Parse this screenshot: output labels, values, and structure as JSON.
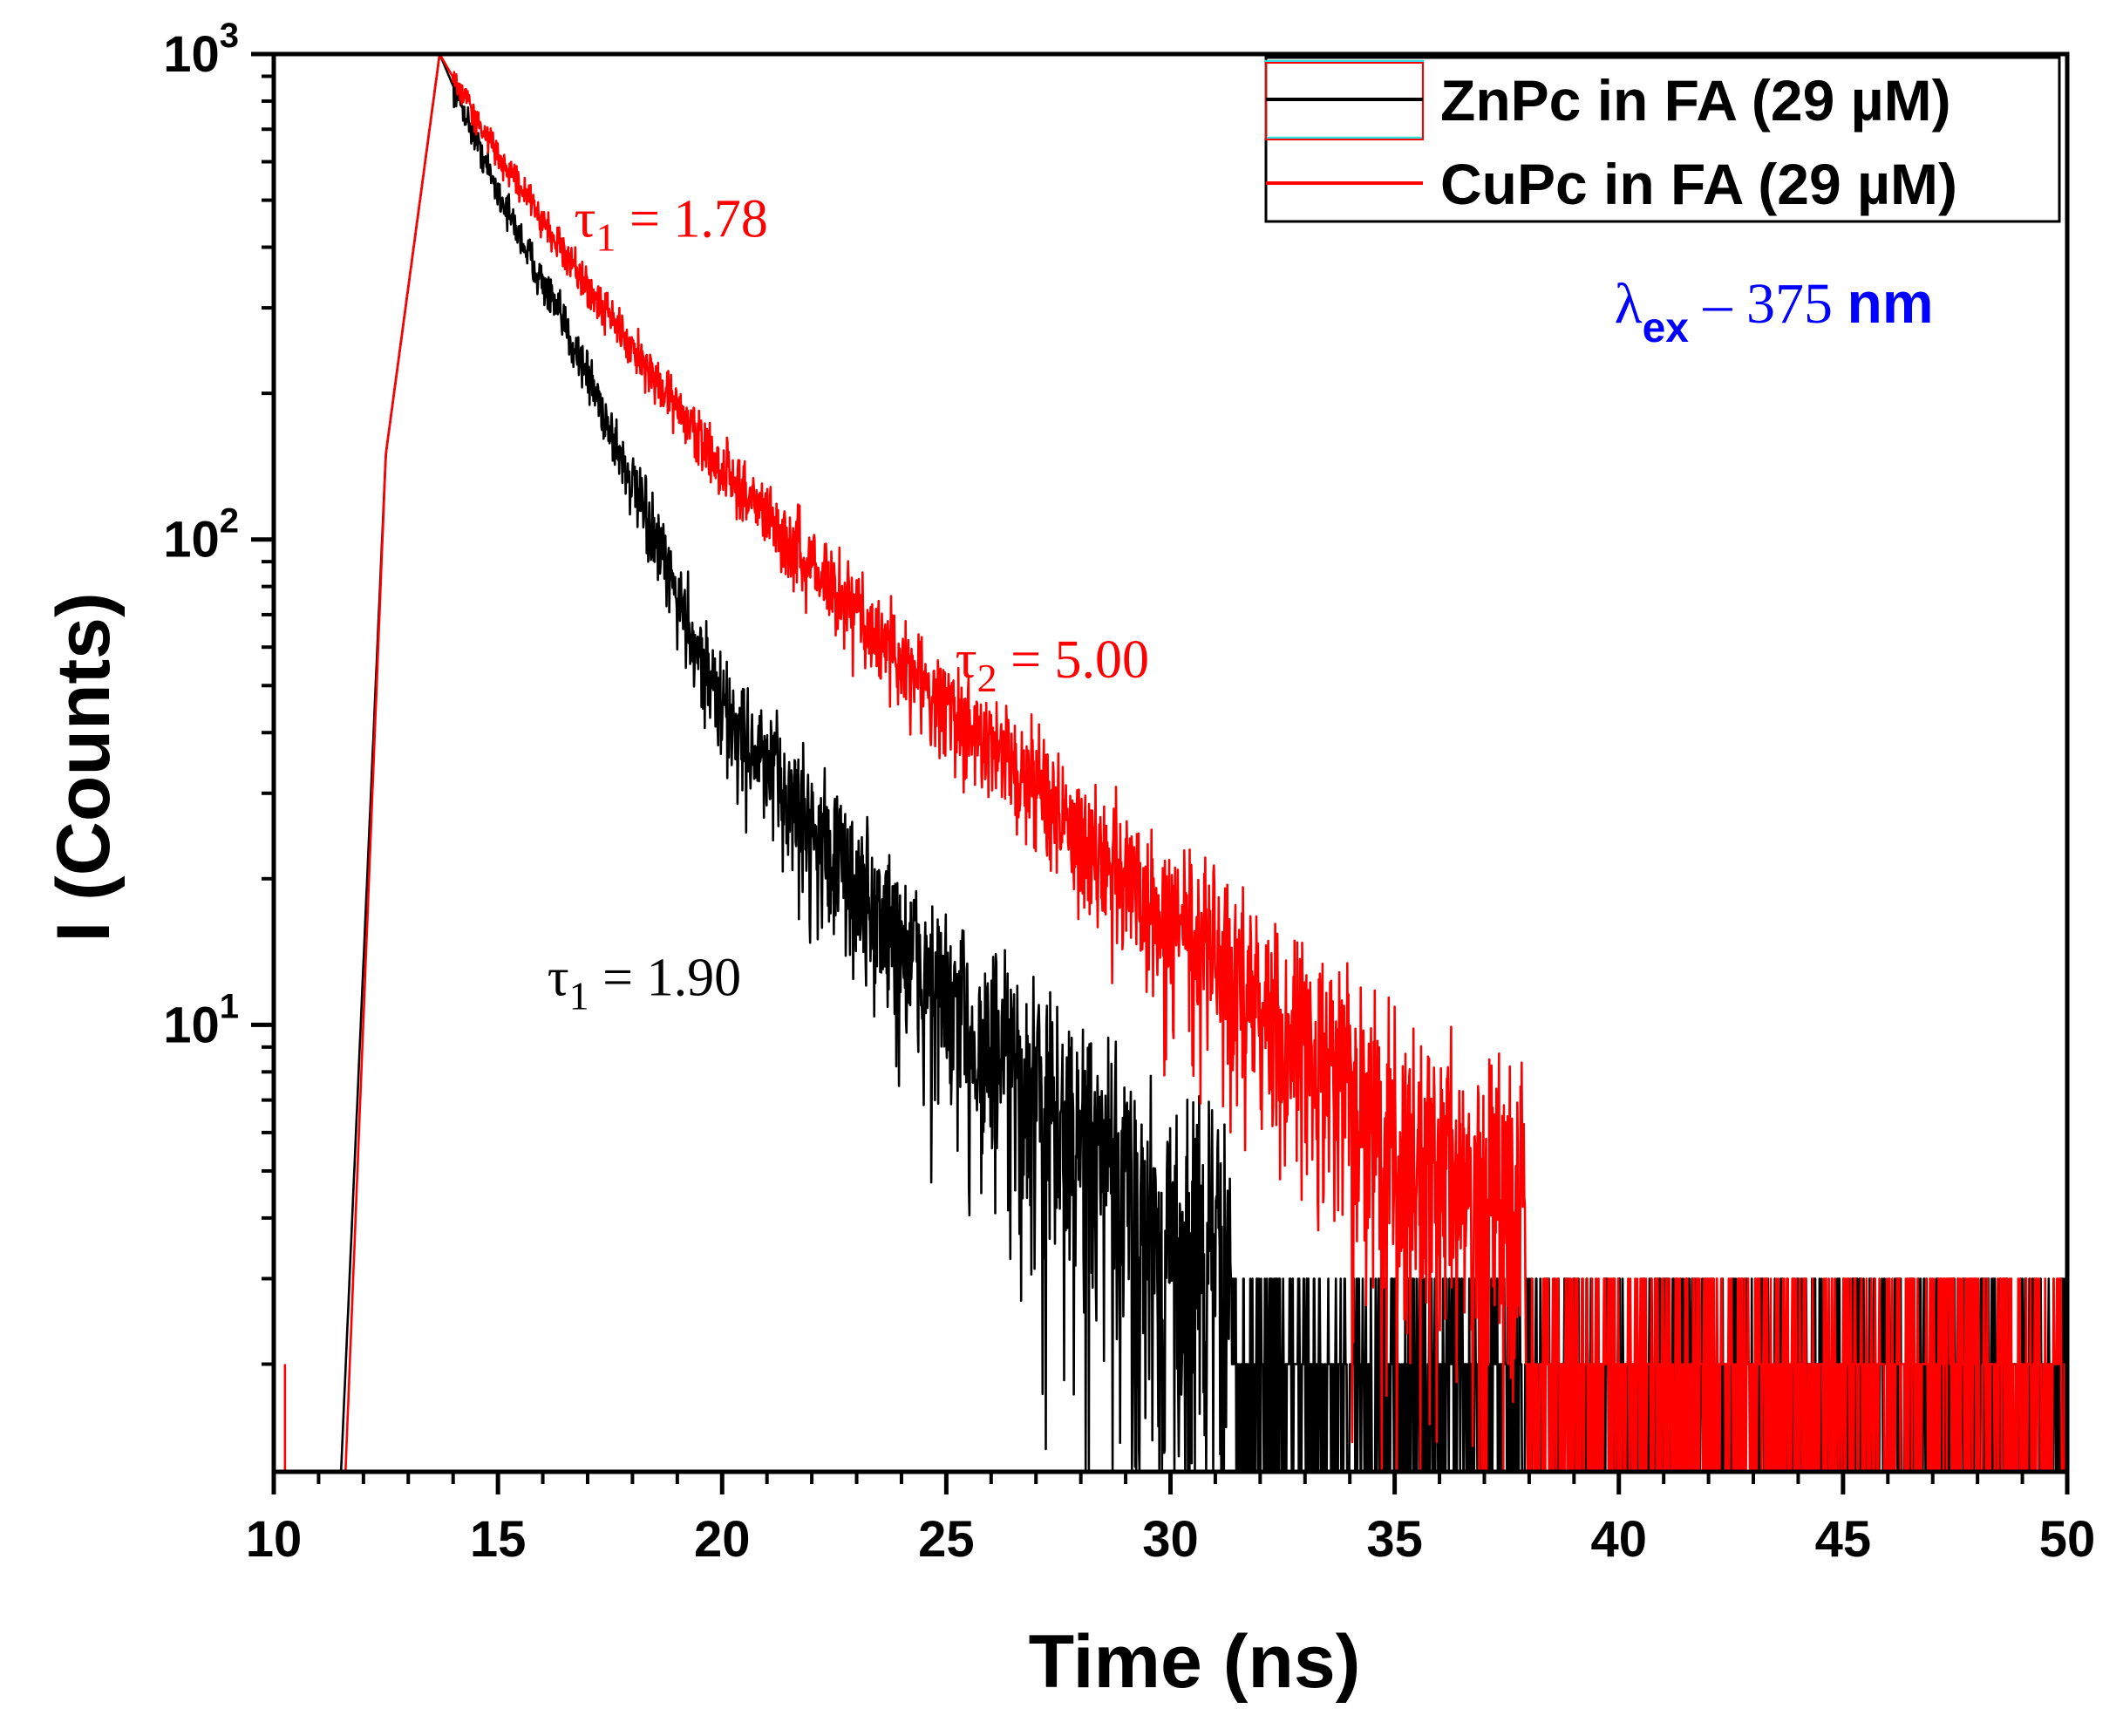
{
  "chart_data": {
    "type": "line",
    "title": "",
    "xlabel": "Time (ns)",
    "ylabel": "I (Counts)",
    "xlim": [
      10,
      50
    ],
    "ylim": [
      1.2,
      1000
    ],
    "yscale": "log",
    "x_ticks": [
      10,
      15,
      20,
      25,
      30,
      35,
      40,
      45,
      50
    ],
    "x_tick_labels": [
      "10",
      "15",
      "20",
      "25",
      "30",
      "35",
      "40",
      "45",
      "50"
    ],
    "x_minor_tick_step": 1,
    "y_ticks": [
      {
        "base": "10",
        "exp": "1",
        "value": 10
      },
      {
        "base": "10",
        "exp": "2",
        "value": 100
      },
      {
        "base": "10",
        "exp": "3",
        "value": 1000
      }
    ],
    "legend_position": "top-right",
    "series": [
      {
        "name": "ZnPc in FA (29 µM)",
        "color": "#000000",
        "peak_time": 13.7,
        "peak_value": 1000,
        "rise_start": 11.5,
        "lifetimes_ns": [
          1.9
        ],
        "key_points": [
          {
            "x": 11.5,
            "y": 1.2
          },
          {
            "x": 12.5,
            "y": 150
          },
          {
            "x": 13.7,
            "y": 1000
          },
          {
            "x": 15,
            "y": 520
          },
          {
            "x": 17,
            "y": 220
          },
          {
            "x": 20,
            "y": 45
          },
          {
            "x": 25,
            "y": 11
          },
          {
            "x": 30,
            "y": 3.5
          },
          {
            "x": 40,
            "y": 1.8
          },
          {
            "x": 50,
            "y": 1.5
          }
        ],
        "noise_floor": 2
      },
      {
        "name": "CuPc in FA (29 µM)",
        "color": "#ff0000",
        "peak_time": 13.7,
        "peak_value": 1000,
        "rise_start": 11.6,
        "lifetimes_ns": [
          1.78,
          5.0
        ],
        "key_points": [
          {
            "x": 11.6,
            "y": 1.2
          },
          {
            "x": 12.5,
            "y": 150
          },
          {
            "x": 13.7,
            "y": 1000
          },
          {
            "x": 15,
            "y": 620
          },
          {
            "x": 17,
            "y": 330
          },
          {
            "x": 20,
            "y": 140
          },
          {
            "x": 25,
            "y": 45
          },
          {
            "x": 30,
            "y": 17
          },
          {
            "x": 35,
            "y": 6
          },
          {
            "x": 40,
            "y": 3
          },
          {
            "x": 50,
            "y": 2
          }
        ],
        "noise_floor": 2.5
      }
    ],
    "annotations": [
      {
        "name": "cupc-tau1",
        "text_tau": "τ",
        "sub": "1",
        "text_rest": " = 1.78",
        "color": "#ff0000",
        "x": 16.7,
        "y": 420
      },
      {
        "name": "cupc-tau2",
        "text_tau": "τ",
        "sub": "2",
        "text_rest": " = 5.00",
        "color": "#ff0000",
        "x": 25.2,
        "y": 52
      },
      {
        "name": "znpc-tau1",
        "text_tau": "τ",
        "sub": "1",
        "text_rest": " = 1.90",
        "color": "#000000",
        "x": 16.1,
        "y": 11.5
      }
    ],
    "excitation": {
      "lambda": "λ",
      "sub": "ex",
      "middle": " – 375 ",
      "unit": "nm",
      "color": "#0000ff",
      "x": 39.9,
      "y": 280
    }
  }
}
